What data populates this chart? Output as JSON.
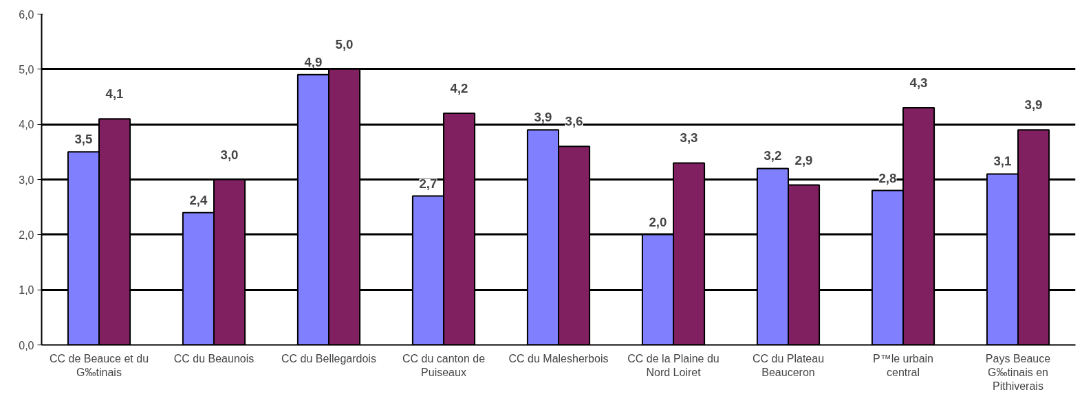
{
  "chart_data": {
    "type": "bar",
    "categories": [
      "CC de Beauce et du G‰tinais",
      "CC du Beaunois",
      "CC du Bellegardois",
      "CC du canton de Puiseaux",
      "CC du Malesherbois",
      "CC de la Plaine du Nord Loiret",
      "CC du Plateau Beauceron",
      "P™le urbain central",
      "Pays Beauce G‰tinais en Pithiverais"
    ],
    "series": [
      {
        "color": "#8080ff",
        "values": [
          3.5,
          2.4,
          4.9,
          2.7,
          3.9,
          2.0,
          3.2,
          2.8,
          3.1
        ],
        "value_labels": [
          "3,5",
          "2,4",
          "4,9",
          "2,7",
          "3,9",
          "2,0",
          "3,2",
          "2,8",
          "3,1"
        ]
      },
      {
        "color": "#802060",
        "values": [
          4.1,
          3.0,
          5.0,
          4.2,
          3.6,
          3.3,
          2.9,
          4.3,
          3.9
        ],
        "value_labels": [
          "4,1",
          "3,0",
          "5,0",
          "4,2",
          "3,6",
          "3,3",
          "2,9",
          "4,3",
          "3,9"
        ]
      }
    ],
    "ylim": [
      0,
      6
    ],
    "yticks": [
      {
        "value": 0,
        "label": "0,0"
      },
      {
        "value": 1,
        "label": "1,0"
      },
      {
        "value": 2,
        "label": "2,0"
      },
      {
        "value": 3,
        "label": "3,0"
      },
      {
        "value": 4,
        "label": "4,0"
      },
      {
        "value": 5,
        "label": "5,0"
      },
      {
        "value": 6,
        "label": "6,0"
      }
    ],
    "grid": "y"
  }
}
